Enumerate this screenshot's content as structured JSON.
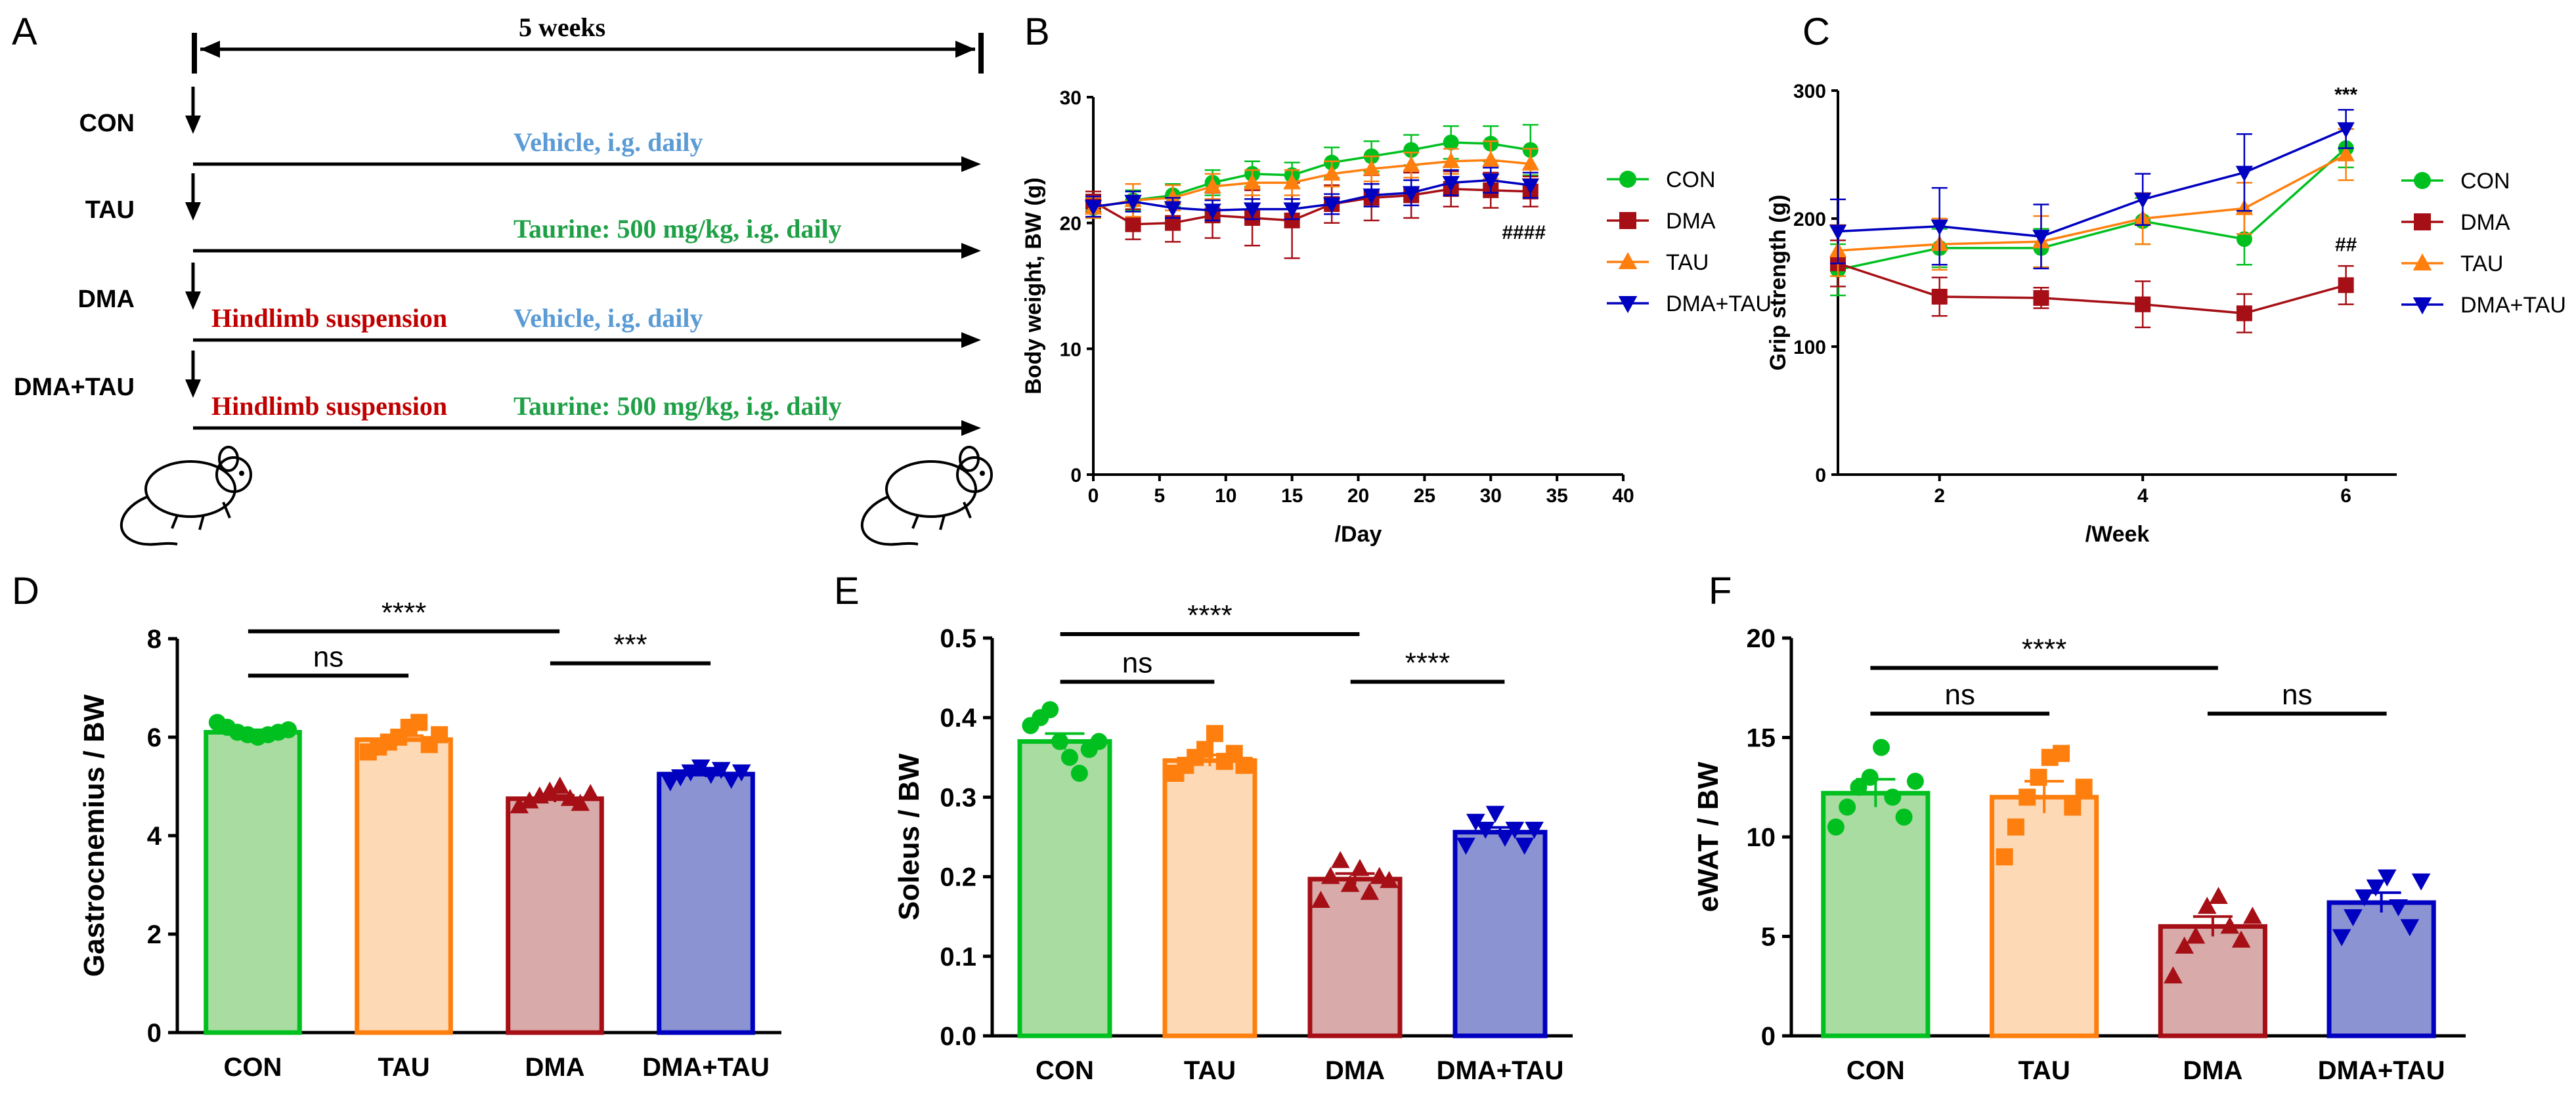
{
  "panel_a": {
    "label": "A",
    "duration": "5 weeks",
    "rows": [
      {
        "group": "CON",
        "left": "",
        "right": "Vehicle, i.g. daily",
        "right_color": "#5b9bd5"
      },
      {
        "group": "TAU",
        "left": "",
        "right": "Taurine: 500 mg/kg, i.g. daily",
        "right_color": "#1fa046"
      },
      {
        "group": "DMA",
        "left": "Hindlimb suspension",
        "right": "Vehicle, i.g. daily",
        "right_color": "#5b9bd5"
      },
      {
        "group": "DMA+TAU",
        "left": "Hindlimb suspension",
        "right": "Taurine: 500 mg/kg, i.g. daily",
        "right_color": "#1fa046"
      }
    ],
    "left_color": "#c00000"
  },
  "colors": {
    "CON": "#00c020",
    "DMA": "#a50f15",
    "TAU": "#ff7f0e",
    "DMA+TAU": "#0000c0",
    "CON_fill": "#a8dca0",
    "TAU_fill": "#fdd9b5",
    "DMA_fill": "#d8aaaa",
    "DMA+TAU_fill": "#8b93d3"
  },
  "chart_data": [
    {
      "id": "B",
      "label": "B",
      "type": "line",
      "xlabel": "/Day",
      "ylabel": "Body weight, BW (g)",
      "xlim": [
        0,
        40
      ],
      "ylim": [
        0,
        30
      ],
      "xticks": [
        0,
        5,
        10,
        15,
        20,
        25,
        30,
        35,
        40
      ],
      "yticks": [
        0,
        10,
        20,
        30
      ],
      "annotation": "####",
      "x": [
        0,
        3,
        6,
        9,
        12,
        15,
        18,
        21,
        24,
        27,
        30,
        33
      ],
      "series": [
        {
          "name": "CON",
          "marker": "circle",
          "values": [
            21.2,
            21.8,
            22.2,
            23.2,
            23.9,
            23.8,
            24.8,
            25.3,
            25.8,
            26.4,
            26.3,
            25.8
          ],
          "err": [
            0.8,
            0.8,
            0.9,
            1.0,
            1.0,
            1.0,
            1.2,
            1.2,
            1.2,
            1.3,
            1.4,
            2.0
          ]
        },
        {
          "name": "DMA",
          "marker": "square",
          "values": [
            21.7,
            19.9,
            20.0,
            20.6,
            20.4,
            20.2,
            21.5,
            22.0,
            22.2,
            22.7,
            22.6,
            22.5
          ],
          "err": [
            0.8,
            1.2,
            1.5,
            1.8,
            2.2,
            3.0,
            1.5,
            1.8,
            1.8,
            1.4,
            1.4,
            1.2
          ]
        },
        {
          "name": "TAU",
          "marker": "triangle-up",
          "values": [
            21.2,
            21.8,
            22.0,
            22.9,
            23.2,
            23.2,
            23.9,
            24.3,
            24.6,
            24.9,
            25.0,
            24.7
          ],
          "err": [
            0.8,
            1.3,
            1.0,
            1.0,
            1.0,
            1.0,
            1.0,
            1.0,
            1.0,
            1.0,
            1.5,
            1.2
          ]
        },
        {
          "name": "DMA+TAU",
          "marker": "triangle-down",
          "values": [
            21.3,
            21.7,
            21.2,
            21.0,
            21.1,
            21.1,
            21.5,
            22.2,
            22.4,
            23.2,
            23.4,
            23.0
          ],
          "err": [
            0.8,
            0.8,
            0.8,
            0.8,
            0.8,
            0.8,
            0.8,
            0.9,
            1.0,
            1.0,
            1.0,
            1.0
          ]
        }
      ],
      "legend": [
        "CON",
        "DMA",
        "TAU",
        "DMA+TAU"
      ]
    },
    {
      "id": "C",
      "label": "C",
      "type": "line",
      "xlabel": "/Week",
      "ylabel": "Grip strength (g)",
      "xlim": [
        1,
        6.5
      ],
      "ylim": [
        0,
        300
      ],
      "xticks": [
        2,
        4,
        6
      ],
      "yticks": [
        0,
        100,
        200,
        300
      ],
      "annotation_top": "***",
      "annotation_mid": "##",
      "x": [
        1,
        2,
        3,
        4,
        5,
        6
      ],
      "series": [
        {
          "name": "CON",
          "marker": "circle",
          "values": [
            160,
            177,
            177,
            198,
            184,
            255
          ],
          "err": [
            20,
            15,
            15,
            18,
            20,
            15
          ]
        },
        {
          "name": "DMA",
          "marker": "square",
          "values": [
            165,
            139,
            138,
            133,
            126,
            148
          ],
          "err": [
            18,
            15,
            8,
            18,
            15,
            15
          ]
        },
        {
          "name": "TAU",
          "marker": "triangle-up",
          "values": [
            175,
            180,
            182,
            200,
            208,
            250
          ],
          "err": [
            20,
            20,
            20,
            20,
            20,
            20
          ]
        },
        {
          "name": "DMA+TAU",
          "marker": "triangle-down",
          "values": [
            190,
            194,
            186,
            215,
            236,
            270
          ],
          "err": [
            25,
            30,
            25,
            20,
            30,
            15
          ]
        }
      ],
      "legend": [
        "CON",
        "DMA",
        "TAU",
        "DMA+TAU"
      ]
    },
    {
      "id": "D",
      "label": "D",
      "type": "bar",
      "ylabel": "Gastrocnemius / BW",
      "ylim": [
        0,
        8
      ],
      "yticks": [
        0,
        2,
        4,
        6,
        8
      ],
      "categories": [
        "CON",
        "TAU",
        "DMA",
        "DMA+TAU"
      ],
      "values": [
        6.1,
        5.95,
        4.75,
        5.25
      ],
      "err": [
        0.05,
        0.08,
        0.07,
        0.06
      ],
      "points": [
        [
          6.3,
          6.2,
          6.1,
          6.05,
          6.0,
          6.05,
          6.1,
          6.15
        ],
        [
          5.7,
          5.8,
          5.9,
          6.0,
          6.2,
          6.3,
          5.85,
          6.05
        ],
        [
          4.6,
          4.7,
          4.8,
          4.9,
          5.0,
          4.75,
          4.65,
          4.85
        ],
        [
          5.1,
          5.2,
          5.3,
          5.4,
          5.25,
          5.35,
          5.15,
          5.3
        ]
      ],
      "comparisons": [
        {
          "a": 0,
          "b": 1,
          "y": 7.25,
          "text": "ns"
        },
        {
          "a": 0,
          "b": 2,
          "y": 8.15,
          "text": "****"
        },
        {
          "a": 2,
          "b": 3,
          "y": 7.5,
          "text": "***"
        }
      ]
    },
    {
      "id": "E",
      "label": "E",
      "type": "bar",
      "ylabel": "Soleus / BW",
      "ylim": [
        0,
        0.5
      ],
      "yticks": [
        0.0,
        0.1,
        0.2,
        0.3,
        0.4,
        0.5
      ],
      "categories": [
        "CON",
        "TAU",
        "DMA",
        "DMA+TAU"
      ],
      "values": [
        0.37,
        0.346,
        0.197,
        0.256
      ],
      "err": [
        0.01,
        0.007,
        0.007,
        0.006
      ],
      "points": [
        [
          0.39,
          0.4,
          0.41,
          0.37,
          0.35,
          0.33,
          0.36,
          0.37
        ],
        [
          0.33,
          0.34,
          0.35,
          0.36,
          0.38,
          0.345,
          0.355,
          0.34
        ],
        [
          0.17,
          0.2,
          0.22,
          0.19,
          0.21,
          0.18,
          0.2,
          0.195
        ],
        [
          0.24,
          0.27,
          0.26,
          0.28,
          0.25,
          0.26,
          0.24,
          0.26
        ]
      ],
      "comparisons": [
        {
          "a": 0,
          "b": 1,
          "y": 0.445,
          "text": "ns"
        },
        {
          "a": 0,
          "b": 2,
          "y": 0.505,
          "text": "****"
        },
        {
          "a": 2,
          "b": 3,
          "y": 0.445,
          "text": "****"
        }
      ]
    },
    {
      "id": "F",
      "label": "F",
      "type": "bar",
      "ylabel": "eWAT / BW",
      "ylim": [
        0,
        20
      ],
      "yticks": [
        0,
        5,
        10,
        15,
        20
      ],
      "categories": [
        "CON",
        "TAU",
        "DMA",
        "DMA+TAU"
      ],
      "values": [
        12.2,
        12.0,
        5.5,
        6.7
      ],
      "err": [
        0.7,
        0.8,
        0.5,
        0.5
      ],
      "points": [
        [
          10.5,
          11.5,
          12.5,
          13.0,
          14.5,
          12.0,
          11.0,
          12.8
        ],
        [
          9.0,
          10.5,
          12.0,
          13.0,
          14.0,
          14.2,
          11.5,
          12.5
        ],
        [
          3.0,
          4.5,
          5.0,
          6.5,
          7.0,
          5.5,
          4.8,
          6.0
        ],
        [
          5.0,
          6.0,
          7.0,
          7.5,
          8.0,
          6.5,
          5.5,
          7.8
        ]
      ],
      "comparisons": [
        {
          "a": 0,
          "b": 1,
          "y": 16.2,
          "text": "ns"
        },
        {
          "a": 0,
          "b": 2,
          "y": 18.5,
          "text": "****"
        },
        {
          "a": 2,
          "b": 3,
          "y": 16.2,
          "text": "ns"
        }
      ]
    }
  ]
}
